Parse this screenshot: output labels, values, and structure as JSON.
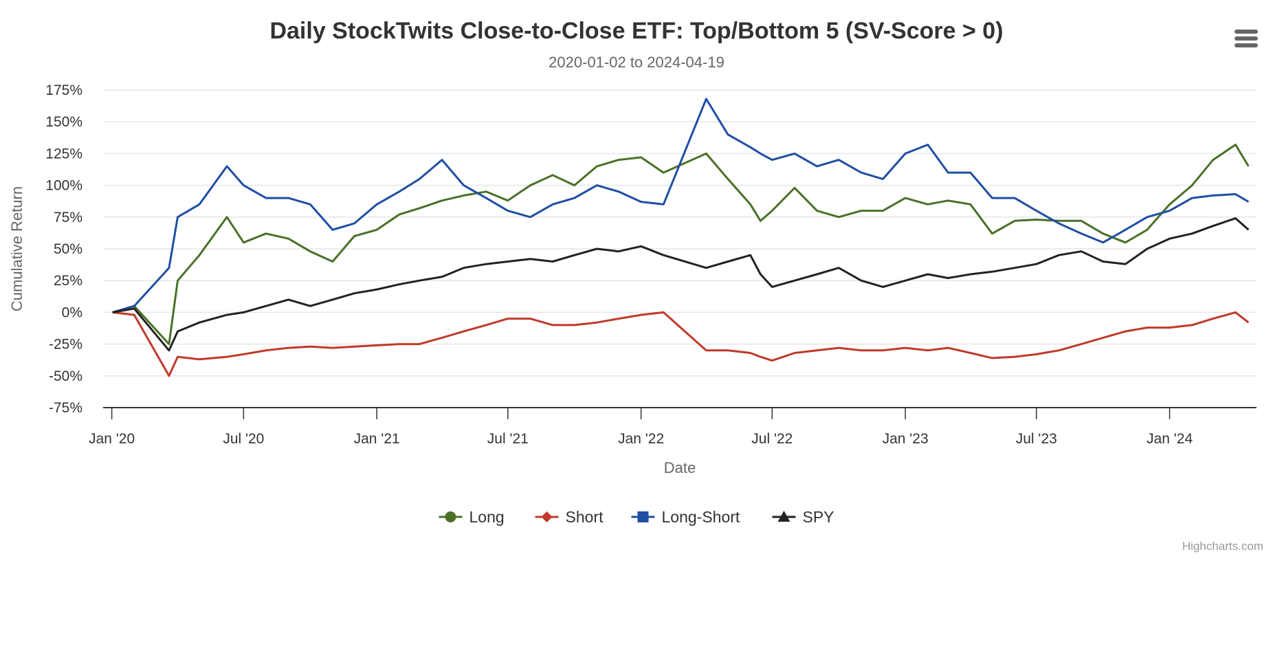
{
  "chart_data": {
    "type": "line",
    "title": "Daily StockTwits Close-to-Close ETF: Top/Bottom 5 (SV-Score > 0)",
    "subtitle": "2020-01-02 to 2024-04-19",
    "xlabel": "Date",
    "ylabel": "Cumulative Return",
    "x_ticks": [
      "Jan '20",
      "Jul '20",
      "Jan '21",
      "Jul '21",
      "Jan '22",
      "Jul '22",
      "Jan '23",
      "Jul '23",
      "Jan '24"
    ],
    "x_tick_dates": [
      "2020-01-01",
      "2020-07-01",
      "2021-01-01",
      "2021-07-01",
      "2022-01-01",
      "2022-07-01",
      "2023-01-01",
      "2023-07-01",
      "2024-01-01"
    ],
    "y_ticks": [
      "175%",
      "150%",
      "125%",
      "100%",
      "75%",
      "50%",
      "25%",
      "0%",
      "-25%",
      "-50%",
      "-75%"
    ],
    "y_tick_values": [
      175,
      150,
      125,
      100,
      75,
      50,
      25,
      0,
      -25,
      -50,
      -75
    ],
    "ylim": [
      -75,
      175
    ],
    "xlim": [
      "2019-12-20",
      "2024-04-30"
    ],
    "grid": true,
    "legend_position": "bottom-center",
    "x": [
      "2020-01-02",
      "2020-02-01",
      "2020-03-20",
      "2020-04-01",
      "2020-05-01",
      "2020-06-08",
      "2020-07-01",
      "2020-08-01",
      "2020-09-01",
      "2020-10-01",
      "2020-11-01",
      "2020-12-01",
      "2021-01-01",
      "2021-02-01",
      "2021-03-01",
      "2021-04-01",
      "2021-05-01",
      "2021-06-01",
      "2021-07-01",
      "2021-08-01",
      "2021-09-01",
      "2021-10-01",
      "2021-11-01",
      "2021-12-01",
      "2022-01-01",
      "2022-02-01",
      "2022-04-01",
      "2022-05-01",
      "2022-06-01",
      "2022-06-15",
      "2022-07-01",
      "2022-08-01",
      "2022-09-01",
      "2022-10-01",
      "2022-11-01",
      "2022-12-01",
      "2023-01-01",
      "2023-02-01",
      "2023-03-01",
      "2023-04-01",
      "2023-05-01",
      "2023-06-01",
      "2023-07-01",
      "2023-08-01",
      "2023-09-01",
      "2023-10-01",
      "2023-11-01",
      "2023-12-01",
      "2024-01-01",
      "2024-02-01",
      "2024-03-01",
      "2024-04-01",
      "2024-04-19"
    ],
    "series": [
      {
        "name": "Long",
        "color": "#4a7028",
        "marker": "circle",
        "values": [
          0,
          5,
          -25,
          25,
          45,
          75,
          55,
          62,
          58,
          48,
          40,
          60,
          65,
          77,
          82,
          88,
          92,
          95,
          88,
          100,
          108,
          100,
          115,
          120,
          122,
          110,
          125,
          105,
          85,
          72,
          80,
          98,
          80,
          75,
          80,
          80,
          90,
          85,
          88,
          85,
          62,
          72,
          73,
          72,
          72,
          62,
          55,
          65,
          85,
          100,
          120,
          132,
          115
        ]
      },
      {
        "name": "Short",
        "color": "#c0392b",
        "marker": "diamond",
        "values": [
          0,
          -2,
          -50,
          -35,
          -37,
          -35,
          -33,
          -30,
          -28,
          -27,
          -28,
          -27,
          -26,
          -25,
          -25,
          -20,
          -15,
          -10,
          -5,
          -5,
          -10,
          -10,
          -8,
          -5,
          -2,
          0,
          -30,
          -30,
          -32,
          -35,
          -38,
          -32,
          -30,
          -28,
          -30,
          -30,
          -28,
          -30,
          -28,
          -32,
          -36,
          -35,
          -33,
          -30,
          -25,
          -20,
          -15,
          -12,
          -12,
          -10,
          -5,
          0,
          -8
        ]
      },
      {
        "name": "Long-Short",
        "color": "#1f4ea3",
        "marker": "square",
        "values": [
          0,
          5,
          35,
          75,
          85,
          115,
          100,
          90,
          90,
          85,
          65,
          70,
          85,
          95,
          105,
          120,
          100,
          90,
          80,
          75,
          85,
          90,
          100,
          95,
          87,
          85,
          168,
          140,
          130,
          125,
          120,
          125,
          115,
          120,
          110,
          105,
          125,
          132,
          110,
          110,
          90,
          90,
          80,
          70,
          62,
          55,
          65,
          75,
          80,
          90,
          92,
          93,
          87
        ]
      },
      {
        "name": "SPY",
        "color": "#222222",
        "marker": "triangle",
        "values": [
          0,
          3,
          -30,
          -15,
          -8,
          -2,
          0,
          5,
          10,
          5,
          10,
          15,
          18,
          22,
          25,
          28,
          35,
          38,
          40,
          42,
          40,
          45,
          50,
          48,
          52,
          45,
          35,
          40,
          45,
          30,
          20,
          25,
          30,
          35,
          25,
          20,
          25,
          30,
          27,
          30,
          32,
          35,
          38,
          45,
          48,
          40,
          38,
          50,
          58,
          62,
          68,
          74,
          65
        ]
      }
    ]
  },
  "credits": "Highcharts.com",
  "menu": {
    "icon": "hamburger-menu-icon"
  }
}
